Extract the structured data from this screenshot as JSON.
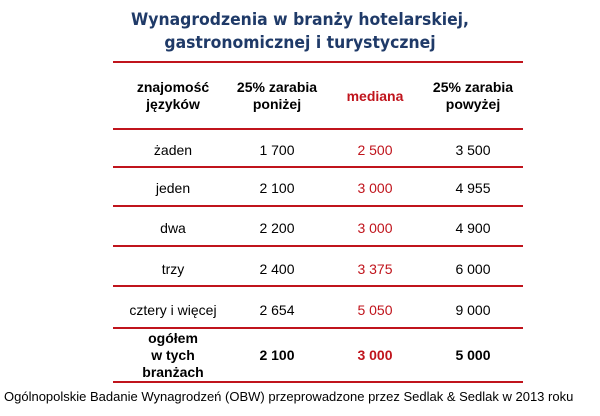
{
  "title": {
    "line1": "Wynagrodzenia w branży hotelarskiej,",
    "line2": "gastronomicznej i turystycznej"
  },
  "colors": {
    "title": "#1f3a68",
    "accent": "#c0141c",
    "text": "#000000"
  },
  "chart_data": {
    "type": "table",
    "columns": [
      {
        "line1": "znajomość",
        "line2": "języków"
      },
      {
        "line1": "25% zarabia",
        "line2": "poniżej"
      },
      {
        "line1": "mediana",
        "line2": ""
      },
      {
        "line1": "25% zarabia",
        "line2": "powyżej"
      }
    ],
    "rows": [
      {
        "label": "żaden",
        "low": "1 700",
        "median": "2 500",
        "high": "3 500"
      },
      {
        "label": "jeden",
        "low": "2 100",
        "median": "3 000",
        "high": "4 955"
      },
      {
        "label": "dwa",
        "low": "2 200",
        "median": "3 000",
        "high": "4 900"
      },
      {
        "label": "trzy",
        "low": "2 400",
        "median": "3 375",
        "high": "6 000"
      },
      {
        "label": "cztery i więcej",
        "low": "2 654",
        "median": "5 050",
        "high": "9 000"
      }
    ],
    "total": {
      "label_lines": [
        "ogółem",
        "w tych",
        "branżach"
      ],
      "low": "2 100",
      "median": "3 000",
      "high": "5 000"
    }
  },
  "source": "Ogólnopolskie Badanie Wynagrodzeń (OBW) przeprowadzone przez Sedlak & Sedlak w 2013 roku"
}
